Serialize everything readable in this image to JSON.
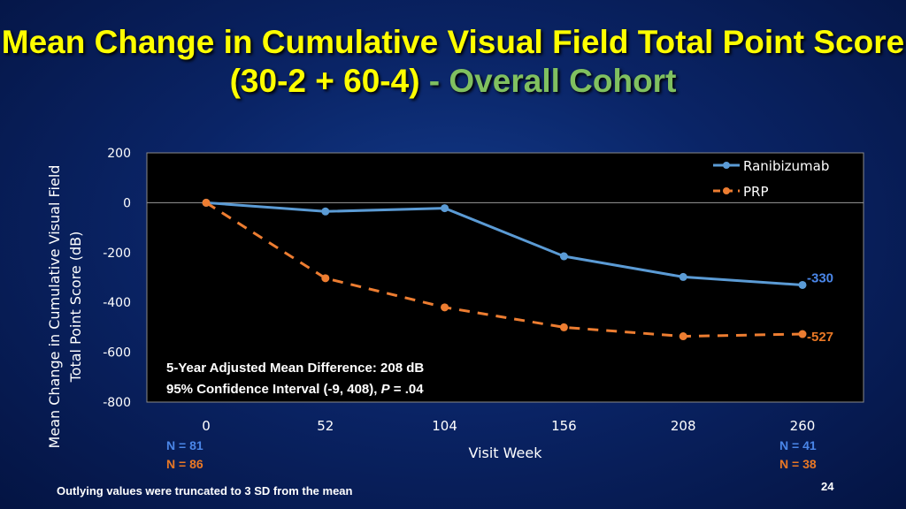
{
  "slide": {
    "title_main": "Mean Change in Cumulative Visual Field Total Point Score (30-2 + 60-4)",
    "title_sep": " - ",
    "title_highlight": "Overall Cohort",
    "footnote": "Outlying values were truncated to 3 SD from the mean",
    "page_number": "24",
    "n_labels": {
      "start_ranibizumab": "N = 81",
      "start_prp": "N = 86",
      "end_ranibizumab": "N = 41",
      "end_prp": "N = 38"
    },
    "colors": {
      "title": "#ffff00",
      "highlight": "#80c060",
      "ranibizumab": "#5b9bd5",
      "prp": "#ed7d31"
    }
  },
  "chart_data": {
    "type": "line",
    "title": "",
    "xlabel": "Visit Week",
    "ylabel": "Mean Change in Cumulative Visual Field Total Point Score (dB)",
    "x": [
      0,
      52,
      104,
      156,
      208,
      260
    ],
    "xticks": [
      "0",
      "52",
      "104",
      "156",
      "208",
      "260"
    ],
    "yticks": [
      "200",
      "0",
      "-200",
      "-400",
      "-600",
      "-800"
    ],
    "ylim": [
      -800,
      200
    ],
    "legend_position": "top-right",
    "series": [
      {
        "name": "Ranibizumab",
        "values": [
          0,
          -35,
          -22,
          -215,
          -298,
          -330
        ],
        "style": "solid",
        "end_label": "-330"
      },
      {
        "name": "PRP",
        "values": [
          0,
          -303,
          -420,
          -500,
          -536,
          -527
        ],
        "style": "dashed",
        "end_label": "-527"
      }
    ],
    "annotations": [
      "5-Year Adjusted Mean Difference: 208 dB",
      "95% Confidence Interval (-9, 408), ",
      "P",
      " = .04"
    ]
  }
}
